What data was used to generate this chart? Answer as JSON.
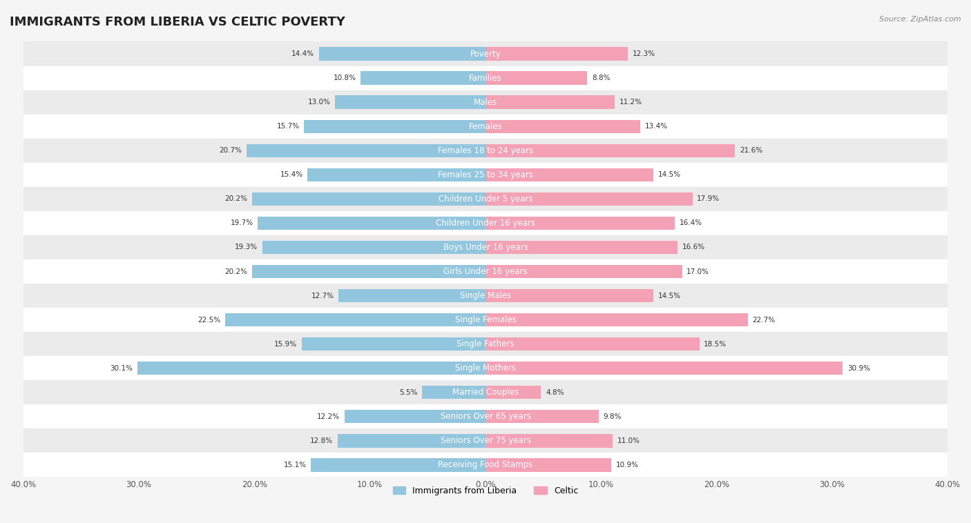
{
  "title": "IMMIGRANTS FROM LIBERIA VS CELTIC POVERTY",
  "source": "Source: ZipAtlas.com",
  "categories": [
    "Poverty",
    "Families",
    "Males",
    "Females",
    "Females 18 to 24 years",
    "Females 25 to 34 years",
    "Children Under 5 years",
    "Children Under 16 years",
    "Boys Under 16 years",
    "Girls Under 16 years",
    "Single Males",
    "Single Females",
    "Single Fathers",
    "Single Mothers",
    "Married Couples",
    "Seniors Over 65 years",
    "Seniors Over 75 years",
    "Receiving Food Stamps"
  ],
  "liberia_values": [
    14.4,
    10.8,
    13.0,
    15.7,
    20.7,
    15.4,
    20.2,
    19.7,
    19.3,
    20.2,
    12.7,
    22.5,
    15.9,
    30.1,
    5.5,
    12.2,
    12.8,
    15.1
  ],
  "celtic_values": [
    12.3,
    8.8,
    11.2,
    13.4,
    21.6,
    14.5,
    17.9,
    16.4,
    16.6,
    17.0,
    14.5,
    22.7,
    18.5,
    30.9,
    4.8,
    9.8,
    11.0,
    10.9
  ],
  "liberia_color": "#92c5de",
  "celtic_color": "#f4a0b5",
  "liberia_label": "Immigrants from Liberia",
  "celtic_label": "Celtic",
  "xlim": 40.0,
  "background_color": "#f5f5f5",
  "row_alt_color": "#ffffff",
  "row_base_color": "#ebebeb",
  "bar_height": 0.55,
  "title_fontsize": 13,
  "label_fontsize": 8.5,
  "value_fontsize": 7.5
}
